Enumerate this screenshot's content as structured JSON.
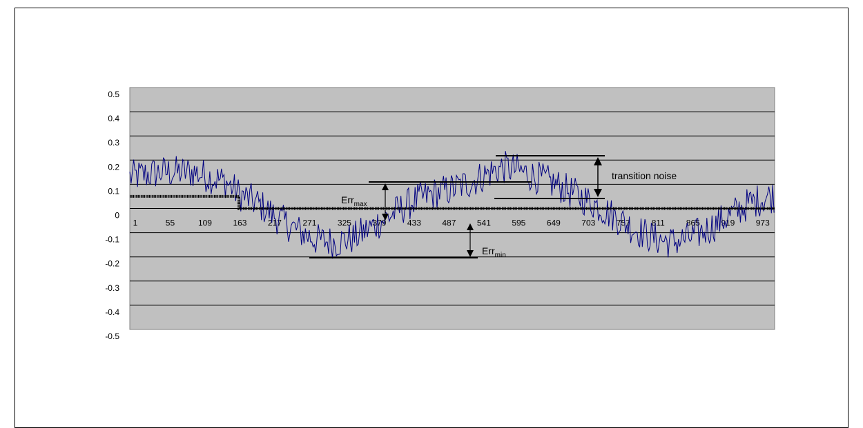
{
  "chart_data": {
    "type": "line",
    "title": "",
    "xlabel": "",
    "ylabel": "",
    "xlim": [
      1,
      1000
    ],
    "ylim": [
      -0.5,
      0.5
    ],
    "y_ticks": [
      "0.5",
      "0.4",
      "0.3",
      "0.2",
      "0.1",
      "0",
      "-0.1",
      "-0.2",
      "-0.3",
      "-0.4",
      "-0.5"
    ],
    "x_ticks": [
      "1",
      "55",
      "109",
      "163",
      "217",
      "271",
      "325",
      "379",
      "433",
      "487",
      "541",
      "595",
      "649",
      "703",
      "757",
      "811",
      "865",
      "919",
      "973"
    ],
    "grid": "horizontal",
    "legend": "none",
    "colors": {
      "plot_bg": "#c0c0c0",
      "noise": "#000080",
      "quantized": "#000000",
      "gridline": "#000000"
    },
    "series": [
      {
        "style": "step",
        "x": [
          1,
          170,
          170,
          580,
          580,
          760,
          760,
          1000
        ],
        "y": [
          0.05,
          0.05,
          0,
          0,
          0,
          0,
          0,
          0
        ]
      },
      {
        "style": "noisy",
        "x": [
          1,
          50,
          100,
          150,
          170,
          200,
          230,
          260,
          290,
          320,
          350,
          380,
          410,
          440,
          470,
          500,
          530,
          560,
          580,
          600,
          630,
          660,
          690,
          720,
          750,
          780,
          810,
          840,
          870,
          900,
          930,
          960,
          990,
          1000
        ],
        "y": [
          0.13,
          0.15,
          0.15,
          0.11,
          0.06,
          0.02,
          -0.04,
          -0.09,
          -0.13,
          -0.14,
          -0.12,
          -0.07,
          -0.02,
          0.03,
          0.06,
          0.08,
          0.11,
          0.15,
          0.17,
          0.16,
          0.13,
          0.1,
          0.06,
          0.02,
          -0.03,
          -0.08,
          -0.12,
          -0.14,
          -0.12,
          -0.08,
          -0.03,
          0.02,
          0.05,
          0.05
        ],
        "noise_amplitude": 0.07
      }
    ],
    "annotations": [
      {
        "main": "transition noise",
        "sub": ""
      },
      {
        "main": "Err",
        "sub": "max"
      },
      {
        "main": "Err",
        "sub": "min"
      }
    ]
  }
}
